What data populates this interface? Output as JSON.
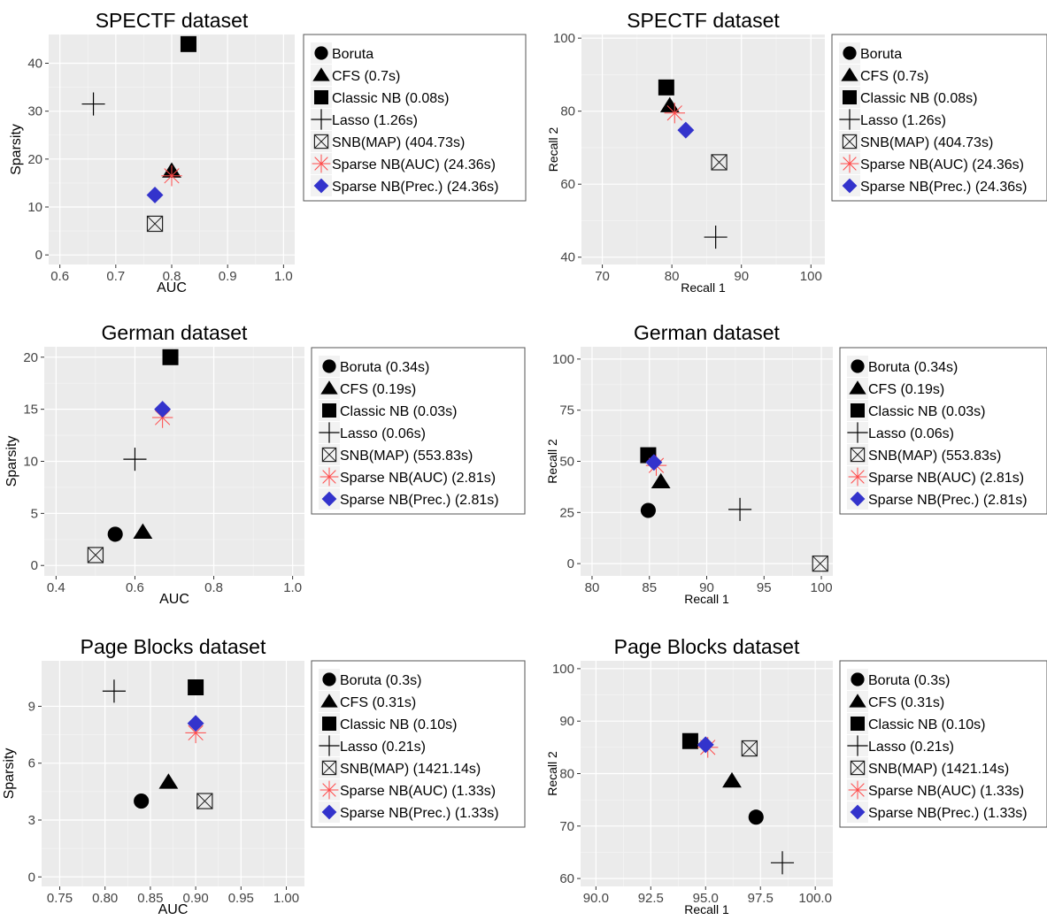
{
  "marker_colors": {
    "default": "#000000",
    "sparse_auc": "#ff4a4a",
    "sparse_prec": "#3333cc"
  },
  "chart_data": [
    {
      "type": "scatter",
      "title": "SPECTF dataset",
      "xlabel": "AUC",
      "ylabel": "Sparsity",
      "xlim": [
        0.58,
        1.02
      ],
      "ylim": [
        -2,
        46
      ],
      "xticks": [
        0.6,
        0.7,
        0.8,
        0.9,
        1.0
      ],
      "xtick_labels": [
        "0.6",
        "0.7",
        "0.8",
        "0.9",
        "1.0"
      ],
      "yticks": [
        0,
        10,
        20,
        30,
        40
      ],
      "ytick_labels": [
        "0",
        "10",
        "20",
        "30",
        "40"
      ],
      "grid": true,
      "legend_position": "right",
      "legend": [
        "Boruta",
        "CFS (0.7s)",
        "Classic NB (0.08s)",
        "Lasso (1.26s)",
        "SNB(MAP) (404.73s)",
        "Sparse NB(AUC) (24.36s)",
        "Sparse NB(Prec.) (24.36s)"
      ],
      "points": [
        {
          "method": "CFS",
          "marker": "triangle",
          "x": 0.8,
          "y": 17.5
        },
        {
          "method": "Classic NB",
          "marker": "square",
          "x": 0.83,
          "y": 44
        },
        {
          "method": "Lasso",
          "marker": "plus",
          "x": 0.66,
          "y": 31.5
        },
        {
          "method": "SNB(MAP)",
          "marker": "boxx",
          "x": 0.77,
          "y": 6.5
        },
        {
          "method": "Sparse NB(AUC)",
          "marker": "asterisk",
          "x": 0.8,
          "y": 16.5
        },
        {
          "method": "Sparse NB(Prec.)",
          "marker": "diamond",
          "x": 0.77,
          "y": 12.5
        }
      ]
    },
    {
      "type": "scatter",
      "title": "SPECTF dataset",
      "xlabel": "Recall 1",
      "ylabel": "Recall 2",
      "xlim": [
        67,
        102
      ],
      "ylim": [
        38,
        101
      ],
      "xticks": [
        70,
        80,
        90,
        100
      ],
      "xtick_labels": [
        "70",
        "80",
        "90",
        "100"
      ],
      "yticks": [
        40,
        60,
        80,
        100
      ],
      "ytick_labels": [
        "40",
        "60",
        "80",
        "100"
      ],
      "grid": true,
      "legend_position": "right",
      "legend": [
        "Boruta",
        "CFS (0.7s)",
        "Classic NB (0.08s)",
        "Lasso (1.26s)",
        "SNB(MAP) (404.73s)",
        "Sparse NB(AUC) (24.36s)",
        "Sparse NB(Prec.) (24.36s)"
      ],
      "points": [
        {
          "method": "CFS",
          "marker": "triangle",
          "x": 79.7,
          "y": 81.5
        },
        {
          "method": "Classic NB",
          "marker": "square",
          "x": 79.2,
          "y": 86.5
        },
        {
          "method": "Lasso",
          "marker": "plus",
          "x": 86.3,
          "y": 45.5
        },
        {
          "method": "SNB(MAP)",
          "marker": "boxx",
          "x": 86.8,
          "y": 66
        },
        {
          "method": "Sparse NB(AUC)",
          "marker": "asterisk",
          "x": 80.4,
          "y": 79.5
        },
        {
          "method": "Sparse NB(Prec.)",
          "marker": "diamond",
          "x": 82.0,
          "y": 74.8
        }
      ]
    },
    {
      "type": "scatter",
      "title": "German dataset",
      "xlabel": "AUC",
      "ylabel": "Sparsity",
      "xlim": [
        0.37,
        1.03
      ],
      "ylim": [
        -1,
        21
      ],
      "xticks": [
        0.4,
        0.6,
        0.8,
        1.0
      ],
      "xtick_labels": [
        "0.4",
        "0.6",
        "0.8",
        "1.0"
      ],
      "yticks": [
        0,
        5,
        10,
        15,
        20
      ],
      "ytick_labels": [
        "0",
        "5",
        "10",
        "15",
        "20"
      ],
      "grid": true,
      "legend_position": "right",
      "legend": [
        "Boruta (0.34s)",
        "CFS (0.19s)",
        "Classic NB (0.03s)",
        "Lasso (0.06s)",
        "SNB(MAP) (553.83s)",
        "Sparse NB(AUC) (2.81s)",
        "Sparse NB(Prec.) (2.81s)"
      ],
      "points": [
        {
          "method": "Boruta",
          "marker": "circle",
          "x": 0.55,
          "y": 3
        },
        {
          "method": "CFS",
          "marker": "triangle",
          "x": 0.62,
          "y": 3.2
        },
        {
          "method": "Classic NB",
          "marker": "square",
          "x": 0.69,
          "y": 20
        },
        {
          "method": "Lasso",
          "marker": "plus",
          "x": 0.6,
          "y": 10.2
        },
        {
          "method": "SNB(MAP)",
          "marker": "boxx",
          "x": 0.5,
          "y": 1
        },
        {
          "method": "Sparse NB(AUC)",
          "marker": "asterisk",
          "x": 0.67,
          "y": 14.2
        },
        {
          "method": "Sparse NB(Prec.)",
          "marker": "diamond",
          "x": 0.67,
          "y": 15
        }
      ]
    },
    {
      "type": "scatter",
      "title": "German dataset",
      "xlabel": "Recall 1",
      "ylabel": "Recall 2",
      "xlim": [
        79,
        101
      ],
      "ylim": [
        -6,
        106
      ],
      "xticks": [
        80,
        85,
        90,
        95,
        100
      ],
      "xtick_labels": [
        "80",
        "85",
        "90",
        "95",
        "100"
      ],
      "yticks": [
        0,
        25,
        50,
        75,
        100
      ],
      "ytick_labels": [
        "0",
        "25",
        "50",
        "75",
        "100"
      ],
      "grid": true,
      "legend_position": "right",
      "legend": [
        "Boruta (0.34s)",
        "CFS (0.19s)",
        "Classic NB (0.03s)",
        "Lasso (0.06s)",
        "SNB(MAP) (553.83s)",
        "Sparse NB(AUC) (2.81s)",
        "Sparse NB(Prec.) (2.81s)"
      ],
      "points": [
        {
          "method": "Boruta",
          "marker": "circle",
          "x": 84.9,
          "y": 26
        },
        {
          "method": "CFS",
          "marker": "triangle",
          "x": 86,
          "y": 40
        },
        {
          "method": "Classic NB",
          "marker": "square",
          "x": 84.9,
          "y": 53
        },
        {
          "method": "Lasso",
          "marker": "plus",
          "x": 92.9,
          "y": 26.5
        },
        {
          "method": "SNB(MAP)",
          "marker": "boxx",
          "x": 99.9,
          "y": 0
        },
        {
          "method": "Sparse NB(AUC)",
          "marker": "asterisk",
          "x": 85.6,
          "y": 48
        },
        {
          "method": "Sparse NB(Prec.)",
          "marker": "diamond",
          "x": 85.4,
          "y": 49.5
        }
      ]
    },
    {
      "type": "scatter",
      "title": "Page Blocks dataset",
      "xlabel": "AUC",
      "ylabel": "Sparsity",
      "xlim": [
        0.73,
        1.02
      ],
      "ylim": [
        -0.5,
        11.4
      ],
      "xticks": [
        0.75,
        0.8,
        0.85,
        0.9,
        0.95,
        1.0
      ],
      "xtick_labels": [
        "0.75",
        "0.80",
        "0.85",
        "0.90",
        "0.95",
        "1.00"
      ],
      "yticks": [
        0,
        3,
        6,
        9
      ],
      "ytick_labels": [
        "0",
        "3",
        "6",
        "9"
      ],
      "grid": true,
      "legend_position": "right",
      "legend": [
        "Boruta (0.3s)",
        "CFS (0.31s)",
        "Classic NB (0.10s)",
        "Lasso (0.21s)",
        "SNB(MAP) (1421.14s)",
        "Sparse NB(AUC) (1.33s)",
        "Sparse NB(Prec.) (1.33s)"
      ],
      "points": [
        {
          "method": "Boruta",
          "marker": "circle",
          "x": 0.84,
          "y": 4
        },
        {
          "method": "CFS",
          "marker": "triangle",
          "x": 0.87,
          "y": 5
        },
        {
          "method": "Classic NB",
          "marker": "square",
          "x": 0.9,
          "y": 10
        },
        {
          "method": "Lasso",
          "marker": "plus",
          "x": 0.81,
          "y": 9.8
        },
        {
          "method": "SNB(MAP)",
          "marker": "boxx",
          "x": 0.91,
          "y": 4
        },
        {
          "method": "Sparse NB(AUC)",
          "marker": "asterisk",
          "x": 0.9,
          "y": 7.6
        },
        {
          "method": "Sparse NB(Prec.)",
          "marker": "diamond",
          "x": 0.9,
          "y": 8.1
        }
      ]
    },
    {
      "type": "scatter",
      "title": "Page Blocks dataset",
      "xlabel": "Recall 1",
      "ylabel": "Recall 2",
      "xlim": [
        89.3,
        100.8
      ],
      "ylim": [
        58.5,
        101.5
      ],
      "xticks": [
        90,
        92.5,
        95,
        97.5,
        100
      ],
      "xtick_labels": [
        "90.0",
        "92.5",
        "95.0",
        "97.5",
        "100.0"
      ],
      "yticks": [
        60,
        70,
        80,
        90,
        100
      ],
      "ytick_labels": [
        "60",
        "70",
        "80",
        "90",
        "100"
      ],
      "grid": true,
      "legend_position": "right",
      "legend": [
        "Boruta (0.3s)",
        "CFS (0.31s)",
        "Classic NB (0.10s)",
        "Lasso (0.21s)",
        "SNB(MAP) (1421.14s)",
        "Sparse NB(AUC) (1.33s)",
        "Sparse NB(Prec.) (1.33s)"
      ],
      "points": [
        {
          "method": "Boruta",
          "marker": "circle",
          "x": 97.3,
          "y": 71.7
        },
        {
          "method": "CFS",
          "marker": "triangle",
          "x": 96.2,
          "y": 78.6
        },
        {
          "method": "Classic NB",
          "marker": "square",
          "x": 94.3,
          "y": 86.2
        },
        {
          "method": "Lasso",
          "marker": "plus",
          "x": 98.5,
          "y": 63
        },
        {
          "method": "SNB(MAP)",
          "marker": "boxx",
          "x": 97.0,
          "y": 84.8
        },
        {
          "method": "Sparse NB(AUC)",
          "marker": "asterisk",
          "x": 95.1,
          "y": 85
        },
        {
          "method": "Sparse NB(Prec.)",
          "marker": "diamond",
          "x": 95.0,
          "y": 85.5
        }
      ]
    }
  ]
}
